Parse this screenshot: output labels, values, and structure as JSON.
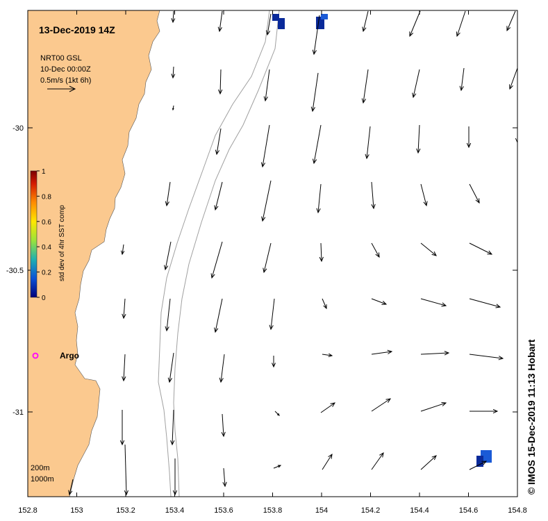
{
  "title": "13-Dec-2019 14Z",
  "info": {
    "line1": "NRT00 GSL",
    "line2": "10-Dec 00:00Z",
    "line3": "0.5m/s (1kt 6h)"
  },
  "colorbar": {
    "label": "std dev of 4hr SST comp",
    "ticks": [
      "1",
      "0.8",
      "0.6",
      "0.4",
      "0.2",
      "0"
    ],
    "colors": [
      "#7a0000",
      "#d41a00",
      "#ff8c00",
      "#ffe600",
      "#9be33a",
      "#1fb0b0",
      "#0b52d6",
      "#00007a"
    ]
  },
  "argo_label": "Argo",
  "isobaths": {
    "shallow": "200m",
    "deep": "1000m"
  },
  "credit": "© IMOS 15-Dec-2019 11:13 Hobart",
  "x_ticks": [
    "152.8",
    "153",
    "153.2",
    "153.4",
    "153.6",
    "153.8",
    "154",
    "154.2",
    "154.4",
    "154.6",
    "154.8"
  ],
  "y_ticks": [
    "-30",
    "-30.5",
    "-31"
  ],
  "colors": {
    "land": "#fbc98f",
    "ocean": "#ffffff",
    "contour": "#a0a0a0",
    "argo": "#ff00ff",
    "sst_patch": "#0a2a9a"
  }
}
